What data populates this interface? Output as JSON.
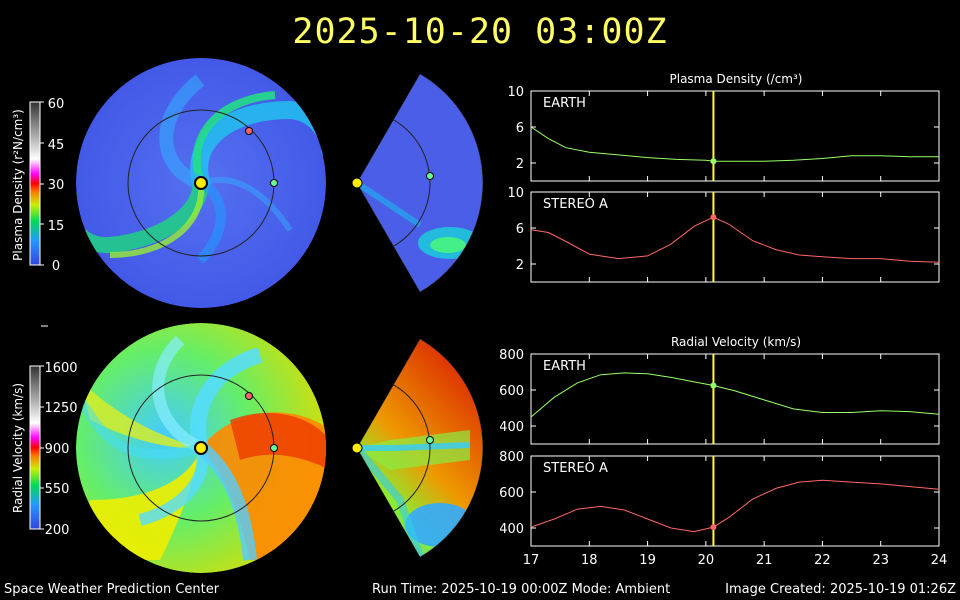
{
  "title": "2025-10-20  03:00Z",
  "footer": {
    "left": "Space Weather Prediction Center",
    "mid": "Run Time: 2025-10-19 00:00Z  Mode: Ambient",
    "right": "Image Created: 2025-10-19 01:26Z"
  },
  "colorbars": {
    "density": {
      "label": "Plasma Density (r²N/cm³)",
      "ticks": [
        "60",
        "45",
        "30",
        "15",
        "0"
      ]
    },
    "velocity": {
      "label": "Radial Velocity (km/s)",
      "ticks": [
        "1600",
        "1250",
        "900",
        "550",
        "200"
      ]
    }
  },
  "markers": {
    "sun": "#ffff00",
    "earth": "#66ff99",
    "stereo_a": "#ff6666"
  },
  "chart_data": [
    {
      "type": "line",
      "title": "Plasma Density (/cm³)",
      "panel": "EARTH",
      "color": "#99ff66",
      "xlim": [
        17,
        24
      ],
      "ylim": [
        0,
        10
      ],
      "yticks": [
        2,
        6,
        10
      ],
      "x": [
        17,
        17.3,
        17.6,
        18,
        18.5,
        19,
        19.5,
        20,
        20.13,
        20.5,
        21,
        21.5,
        22,
        22.5,
        23,
        23.5,
        24
      ],
      "y": [
        6,
        4.7,
        3.7,
        3.2,
        2.9,
        2.6,
        2.4,
        2.3,
        2.2,
        2.2,
        2.2,
        2.3,
        2.5,
        2.8,
        2.8,
        2.7,
        2.7
      ]
    },
    {
      "type": "line",
      "panel": "STEREO A",
      "color": "#ff6666",
      "xlim": [
        17,
        24
      ],
      "ylim": [
        0,
        10
      ],
      "yticks": [
        2,
        6,
        10
      ],
      "x": [
        17,
        17.3,
        17.6,
        18,
        18.5,
        19,
        19.4,
        19.8,
        20.13,
        20.4,
        20.8,
        21.2,
        21.6,
        22,
        22.5,
        23,
        23.5,
        24
      ],
      "y": [
        5.8,
        5.5,
        4.5,
        3.1,
        2.6,
        2.9,
        4.2,
        6.2,
        7.2,
        6.4,
        4.6,
        3.6,
        3.0,
        2.8,
        2.6,
        2.6,
        2.3,
        2.2
      ]
    },
    {
      "type": "line",
      "title": "Radial Velocity (km/s)",
      "panel": "EARTH",
      "color": "#99ff66",
      "xlim": [
        17,
        24
      ],
      "ylim": [
        300,
        800
      ],
      "yticks": [
        400,
        600,
        800
      ],
      "x": [
        17,
        17.4,
        17.8,
        18.2,
        18.6,
        19,
        19.4,
        19.8,
        20.13,
        20.5,
        21,
        21.5,
        22,
        22.5,
        23,
        23.5,
        24
      ],
      "y": [
        450,
        560,
        640,
        685,
        695,
        690,
        670,
        645,
        625,
        595,
        545,
        495,
        475,
        475,
        485,
        480,
        465
      ]
    },
    {
      "type": "line",
      "panel": "STEREO A",
      "color": "#ff6666",
      "xlim": [
        17,
        24
      ],
      "ylim": [
        300,
        800
      ],
      "yticks": [
        400,
        600,
        800
      ],
      "xticks": [
        17,
        18,
        19,
        20,
        21,
        22,
        23,
        24
      ],
      "x": [
        17,
        17.4,
        17.8,
        18.2,
        18.6,
        19,
        19.4,
        19.8,
        20.13,
        20.4,
        20.8,
        21.2,
        21.6,
        22,
        22.5,
        23,
        23.5,
        24
      ],
      "y": [
        405,
        450,
        505,
        520,
        500,
        450,
        400,
        380,
        405,
        460,
        560,
        620,
        655,
        665,
        655,
        645,
        630,
        615
      ]
    }
  ],
  "current_time_x": 20.13
}
